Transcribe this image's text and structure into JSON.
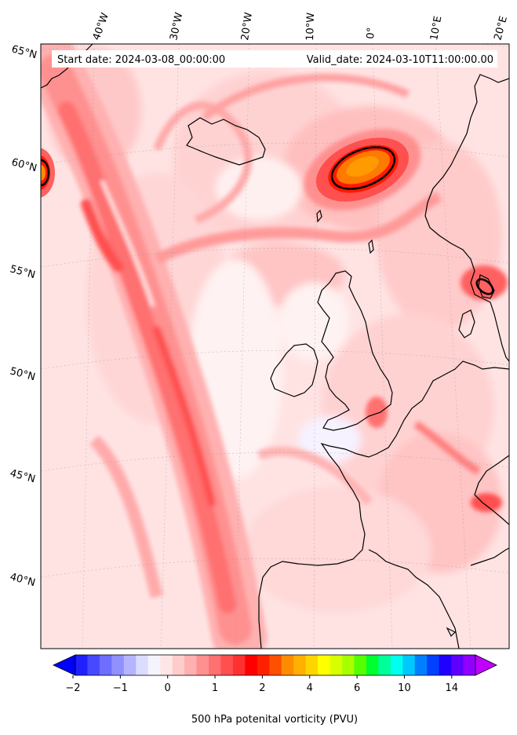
{
  "header": {
    "start_date": "Start date: 2024-03-08_00:00:00",
    "valid_date": "Valid_date: 2024-03-10T11:00:00.00"
  },
  "longitude_labels": [
    "40°W",
    "30°W",
    "20°W",
    "10°W",
    "0°",
    "10°E",
    "20°E"
  ],
  "latitude_labels": [
    "65°N",
    "60°N",
    "55°N",
    "50°N",
    "45°N",
    "40°N"
  ],
  "colorbar": {
    "title": "500 hPa potenital vorticity (PVU)",
    "tick_labels": [
      "−2",
      "−1",
      "0",
      "1",
      "2",
      "4",
      "6",
      "10",
      "14"
    ],
    "colors": [
      "#0000ff",
      "#2020ff",
      "#4848ff",
      "#6e6eff",
      "#9090ff",
      "#b4b4ff",
      "#dcdcff",
      "#f4f4ff",
      "#ffe6e6",
      "#ffcccc",
      "#ffb0b0",
      "#ff9090",
      "#ff7070",
      "#ff4f4f",
      "#ff3030",
      "#ff0000",
      "#ff2000",
      "#ff5000",
      "#ff8c00",
      "#ffb000",
      "#ffd500",
      "#ffff00",
      "#d8ff00",
      "#a8ff00",
      "#55ff00",
      "#00ff30",
      "#00ff99",
      "#00ffee",
      "#00c8ff",
      "#0080ff",
      "#0040ff",
      "#2000ff",
      "#6000ff",
      "#9000ff",
      "#c000ff"
    ]
  },
  "colors": {
    "background_pv": "#ffe8e8",
    "land_outline": "#000000"
  }
}
